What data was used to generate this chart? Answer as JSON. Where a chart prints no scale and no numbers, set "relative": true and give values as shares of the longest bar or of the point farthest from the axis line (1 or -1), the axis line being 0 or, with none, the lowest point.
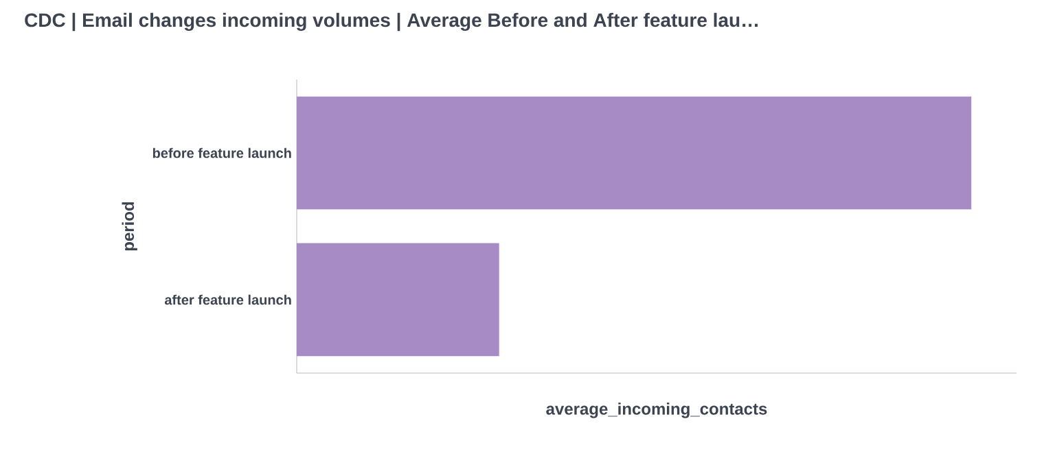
{
  "chart_data": {
    "type": "bar",
    "orientation": "horizontal",
    "relative": true,
    "title": "CDC |  Email changes incoming volumes | Average Before and After feature lau…",
    "xlabel": "average_incoming_contacts",
    "ylabel": "period",
    "categories": [
      "before feature launch",
      "after feature launch"
    ],
    "values": [
      1,
      0.3
    ],
    "color": "#a68bc4"
  }
}
